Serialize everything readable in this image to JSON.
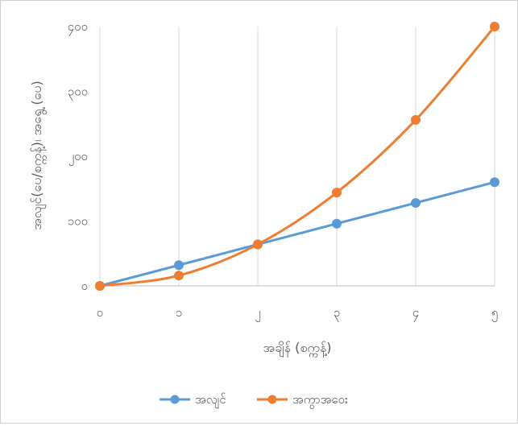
{
  "chart_data": {
    "type": "line",
    "title": "",
    "xlabel": "အချိန် (စက္ကန့်)",
    "ylabel": "အလျင်(ပေ/စက္ကန့်)၊ အရွေ့ (ပေ)",
    "x": [
      0,
      1,
      2,
      3,
      4,
      5
    ],
    "x_tick_labels": [
      "၀",
      "၁",
      "၂",
      "၃",
      "၄",
      "၅"
    ],
    "ylim": [
      0,
      400
    ],
    "y_ticks": [
      0,
      100,
      200,
      300,
      400
    ],
    "y_tick_labels": [
      "၀",
      "၁၀၀",
      "၂၀၀",
      "၃၀၀",
      "၄၀၀"
    ],
    "grid": "vertical",
    "legend_position": "bottom",
    "series": [
      {
        "name": "အလျင်",
        "color": "#5B9BD5",
        "smooth": false,
        "values": [
          0,
          32,
          64,
          96,
          128,
          160
        ]
      },
      {
        "name": "အကွာအဝေး",
        "color": "#ED7D31",
        "smooth": true,
        "values": [
          0,
          16,
          64,
          144,
          256,
          400
        ]
      }
    ]
  }
}
